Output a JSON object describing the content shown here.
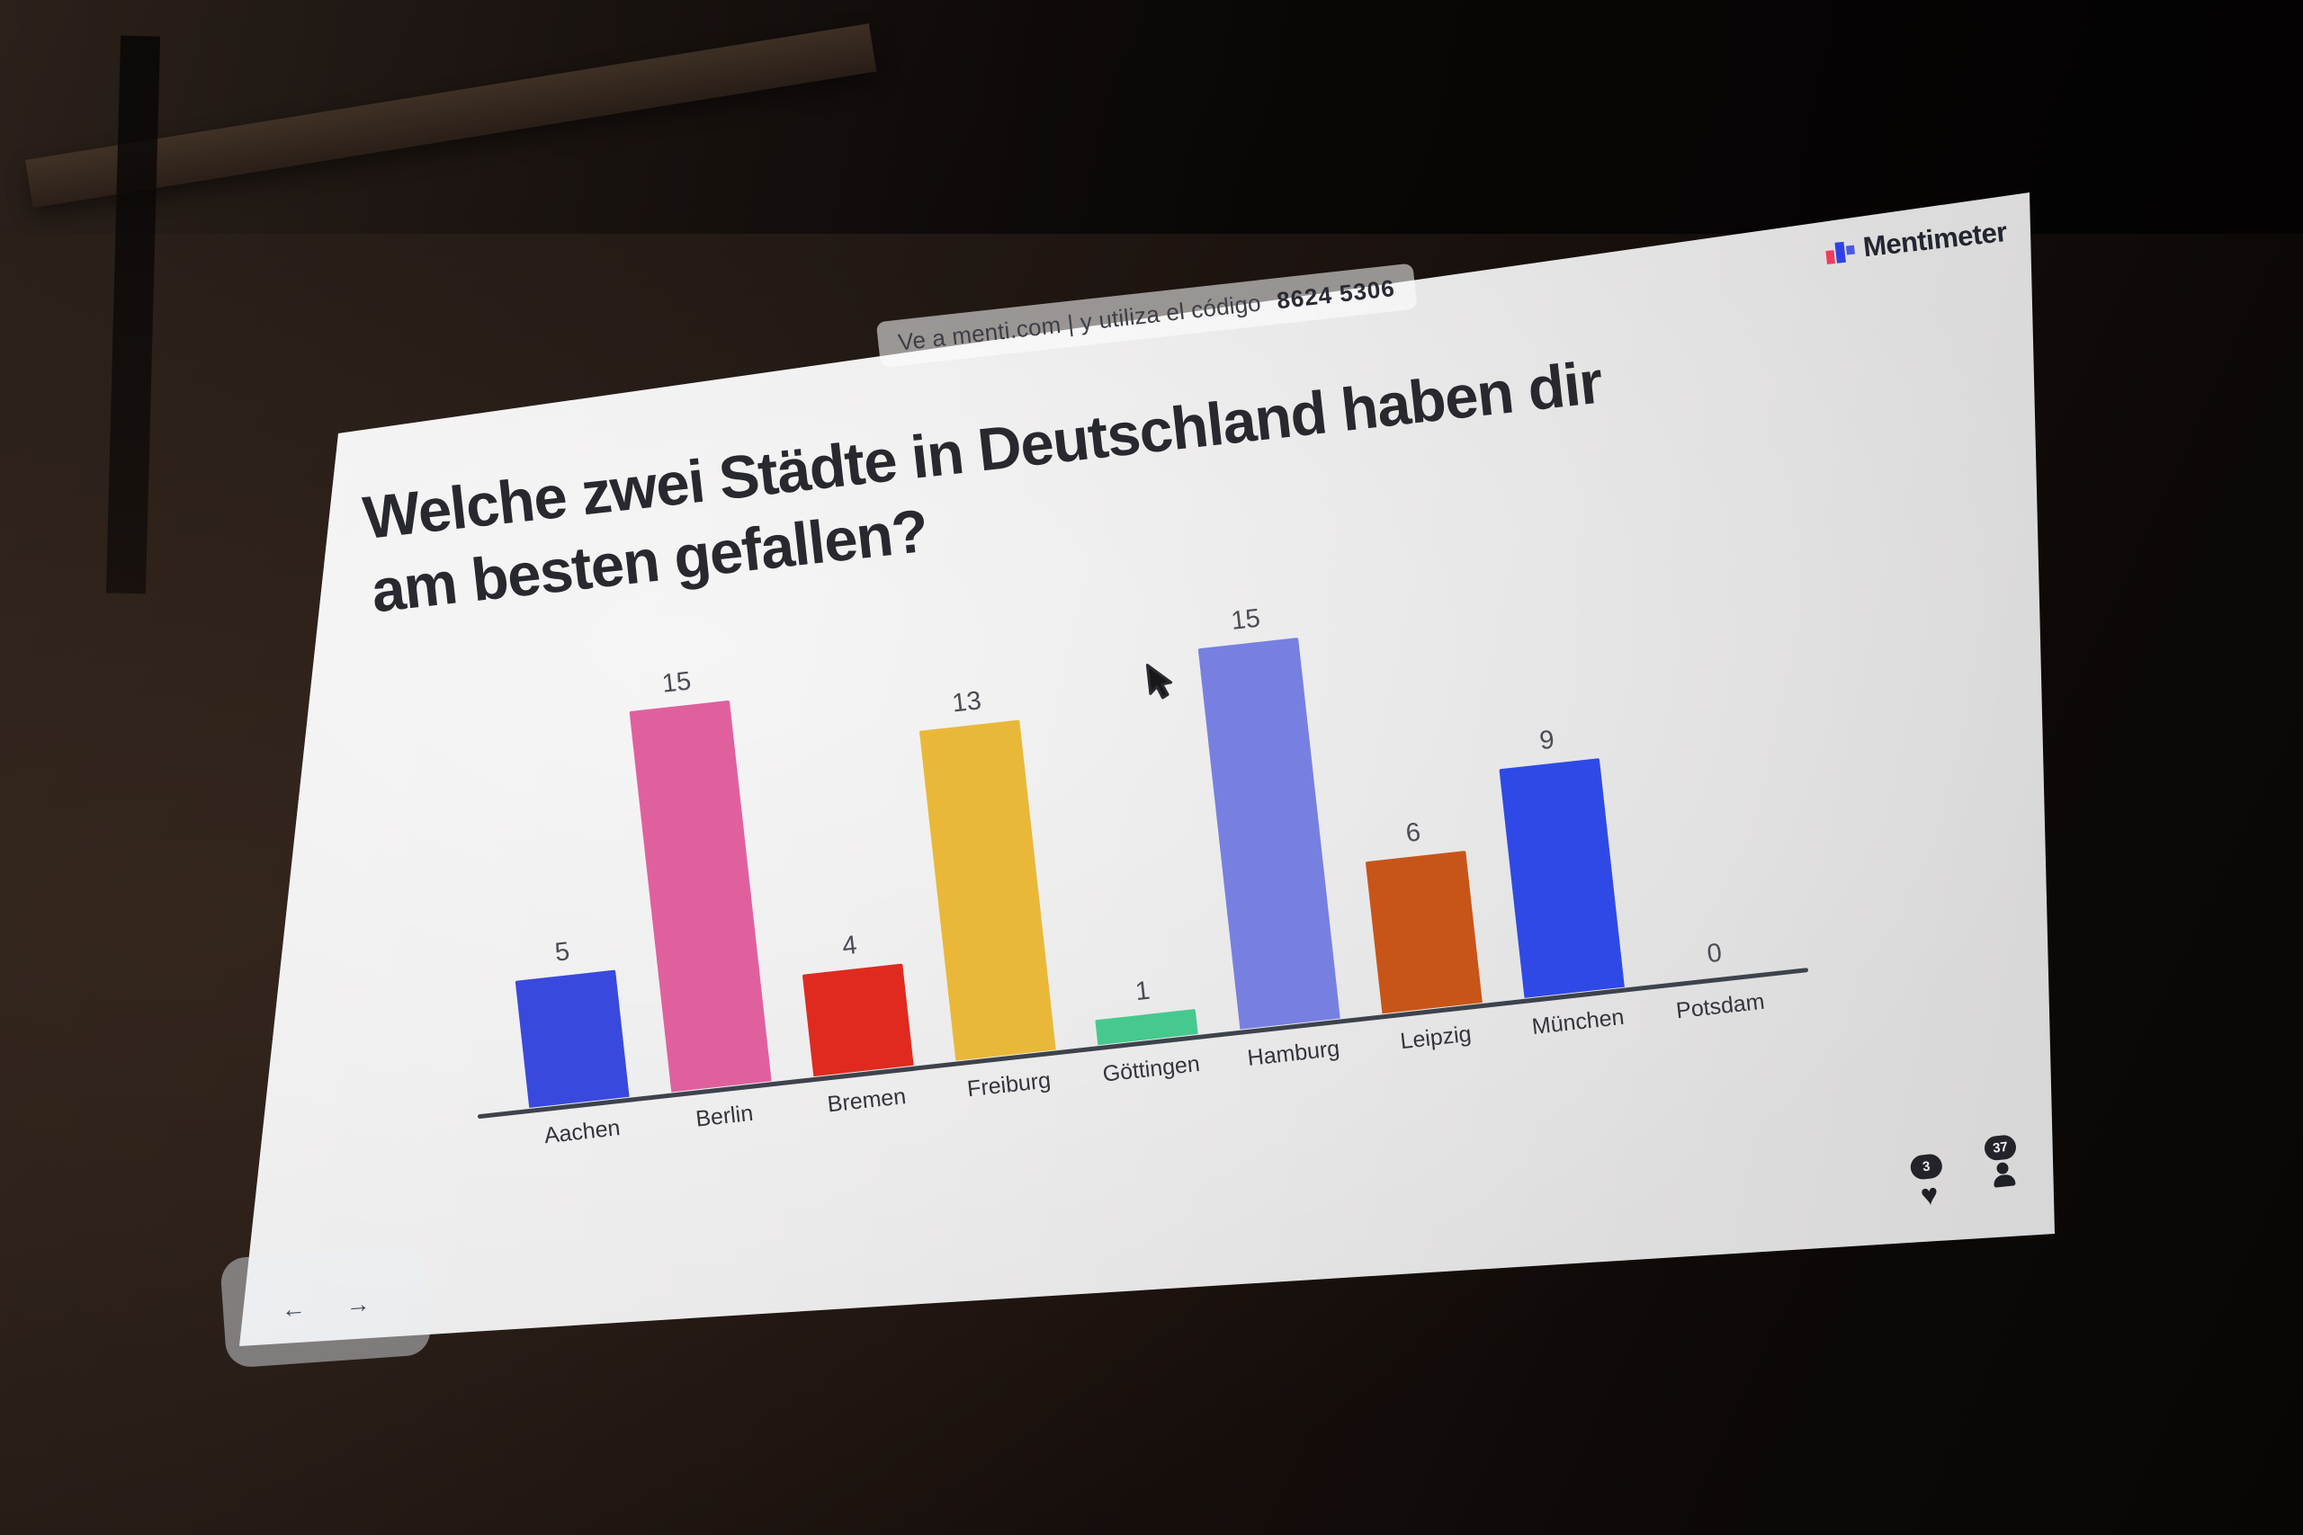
{
  "screen": {
    "join_bar": {
      "instruction": "Ve a menti.com | y utiliza el código",
      "code": "8624 5306"
    },
    "brand": {
      "name": "Mentimeter"
    },
    "title_lines": [
      "Welche zwei Städte in Deutschland haben dir",
      "am besten gefallen?"
    ]
  },
  "chart_data": {
    "type": "bar",
    "title": "Welche zwei Städte in Deutschland haben dir am besten gefallen?",
    "categories": [
      "Aachen",
      "Berlin",
      "Bremen",
      "Freiburg",
      "Göttingen",
      "Hamburg",
      "Leipzig",
      "München",
      "Potsdam"
    ],
    "values": [
      5,
      15,
      4,
      13,
      1,
      15,
      6,
      9,
      0
    ],
    "bar_colors": [
      "#3a49dd",
      "#e0609e",
      "#e02a20",
      "#e9b838",
      "#45c98e",
      "#7780e0",
      "#c85518",
      "#2f49e6",
      null
    ],
    "ylim": [
      0,
      15
    ],
    "value_labels_shown": true,
    "grid": false,
    "legend": "none",
    "xlabel": "",
    "ylabel": ""
  },
  "footer": {
    "reactions": {
      "count": "3",
      "icon": "heart"
    },
    "participants": {
      "count": "37",
      "icon": "person"
    },
    "nav": {
      "prev": "←",
      "next": "→"
    }
  },
  "pointer": {
    "type": "arrow",
    "near_bar": "Hamburg"
  },
  "colors": {
    "slide_background": "#e9e8e8",
    "title_text": "#28282f",
    "axis": "#3d434d",
    "brand_red": "#f23b5f",
    "brand_blue": "#3040e8"
  }
}
